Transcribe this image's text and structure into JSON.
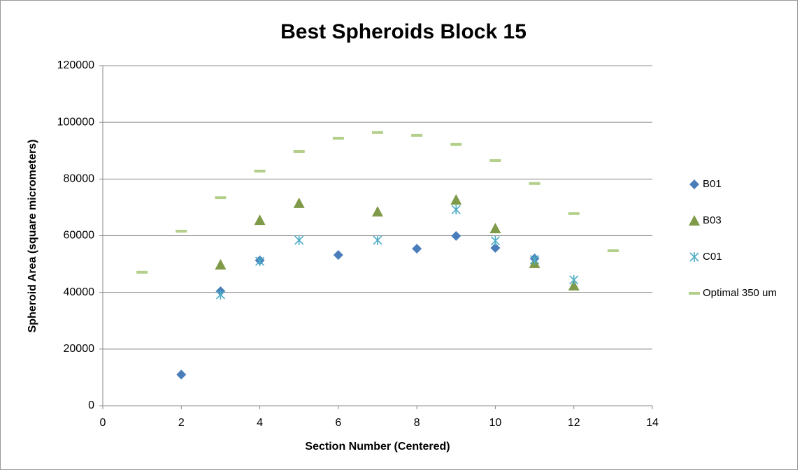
{
  "chart_data": {
    "type": "scatter",
    "title": "Best Spheroids Block 15",
    "x_label": "Section Number (Centered)",
    "y_label": "Spheroid Area (square micrometers)",
    "xlim": [
      0,
      14
    ],
    "xticks": [
      0,
      2,
      4,
      6,
      8,
      10,
      12,
      14
    ],
    "ylim": [
      0,
      120000
    ],
    "yticks": [
      0,
      20000,
      40000,
      60000,
      80000,
      100000,
      120000
    ],
    "grid": true,
    "legend": "right",
    "series": [
      {
        "name": "B01",
        "color": "#4a7ebb",
        "marker": "diamond",
        "x": [
          2,
          3,
          4,
          6,
          8,
          9,
          10,
          11
        ],
        "values": [
          11000,
          40400,
          51300,
          53200,
          55400,
          59900,
          55700,
          52000
        ]
      },
      {
        "name": "B03",
        "color": "#7f9a48",
        "marker": "triangle",
        "x": [
          3,
          4,
          5,
          7,
          9,
          10,
          11,
          12
        ],
        "values": [
          49800,
          65500,
          71500,
          68500,
          72700,
          62600,
          50300,
          42400
        ]
      },
      {
        "name": "C01",
        "color": "#4bacc6",
        "marker": "asterisk",
        "x": [
          3,
          4,
          5,
          7,
          9,
          10,
          11,
          12
        ],
        "values": [
          39200,
          51000,
          58400,
          58400,
          69200,
          58200,
          51500,
          44400
        ]
      },
      {
        "name": "Optimal 350 um",
        "color": "#b3cf8a",
        "marker": "dash",
        "x": [
          1,
          2,
          3,
          4,
          5,
          6,
          7,
          8,
          9,
          10,
          11,
          12,
          13
        ],
        "values": [
          47100,
          61600,
          73400,
          82800,
          89700,
          94400,
          96400,
          95400,
          92200,
          86500,
          78400,
          67800,
          54700
        ]
      }
    ]
  }
}
